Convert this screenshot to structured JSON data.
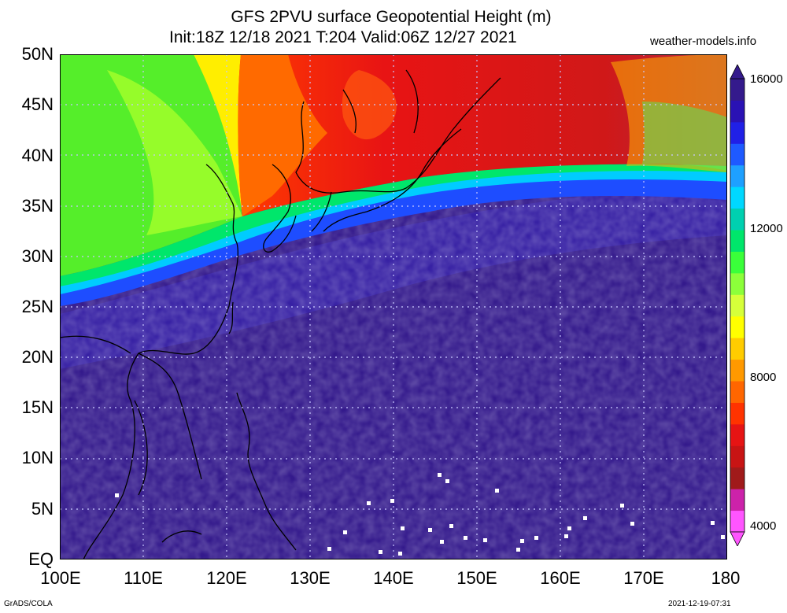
{
  "header": {
    "title_line1": "GFS 2PVU surface Geopotential Height (m)",
    "title_line2": "Init:18Z 12/18 2021 T:204 Valid:06Z 12/27 2021",
    "brand": "weather-models.info"
  },
  "map": {
    "lat_labels": [
      "50N",
      "45N",
      "40N",
      "35N",
      "30N",
      "25N",
      "20N",
      "15N",
      "10N",
      "5N",
      "EQ"
    ],
    "lon_labels": [
      "100E",
      "110E",
      "120E",
      "130E",
      "140E",
      "150E",
      "160E",
      "170E",
      "180"
    ],
    "extent": {
      "lon_min": 100,
      "lon_max": 180,
      "lat_min": 0,
      "lat_max": 50
    },
    "field": "2PVU surface geopotential height",
    "units": "m"
  },
  "colorbar": {
    "labels": [
      "16000",
      "12000",
      "8000",
      "4000"
    ],
    "values": [
      16000,
      12000,
      8000,
      4000
    ],
    "min": 4000,
    "max": 16000,
    "colors": [
      "#ff55ff",
      "#cc22aa",
      "#a01a1a",
      "#c81414",
      "#e61414",
      "#ff3300",
      "#ff6600",
      "#ff9900",
      "#ffcc00",
      "#ffff00",
      "#d6ff3a",
      "#8cff3a",
      "#3aff3a",
      "#00e66b",
      "#00d0b0",
      "#00d8ff",
      "#1ea0ff",
      "#1e5aff",
      "#2020e6",
      "#2a12b4",
      "#341a8c"
    ]
  },
  "footer": {
    "left": "GrADS/COLA",
    "right": "2021-12-19-07:31"
  }
}
